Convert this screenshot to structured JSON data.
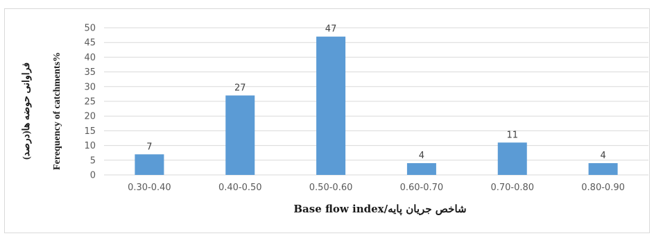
{
  "chart_data": {
    "type": "bar",
    "categories": [
      "0.30-0.40",
      "0.40-0.50",
      "0.50-0.60",
      "0.60-0.70",
      "0.70-0.80",
      "0.80-0.90"
    ],
    "values": [
      7,
      27,
      47,
      4,
      11,
      4
    ],
    "data_labels": [
      "7",
      "27",
      "47",
      "4",
      "11",
      "4"
    ],
    "title": "",
    "xlabel": "Base flow index/شاخص جریان پایه",
    "ylabel_en": "Ferequency of catchments%",
    "ylabel_fa": "فراوانی حوضه ها(درصد)",
    "ylim": [
      0,
      50
    ],
    "yticks": [
      "0",
      "5",
      "10",
      "15",
      "20",
      "25",
      "30",
      "35",
      "40",
      "45",
      "50"
    ],
    "grid": "horizontal",
    "bar_color": "#5b9bd5",
    "grid_color": "#d9d9d9",
    "legend": "none"
  }
}
